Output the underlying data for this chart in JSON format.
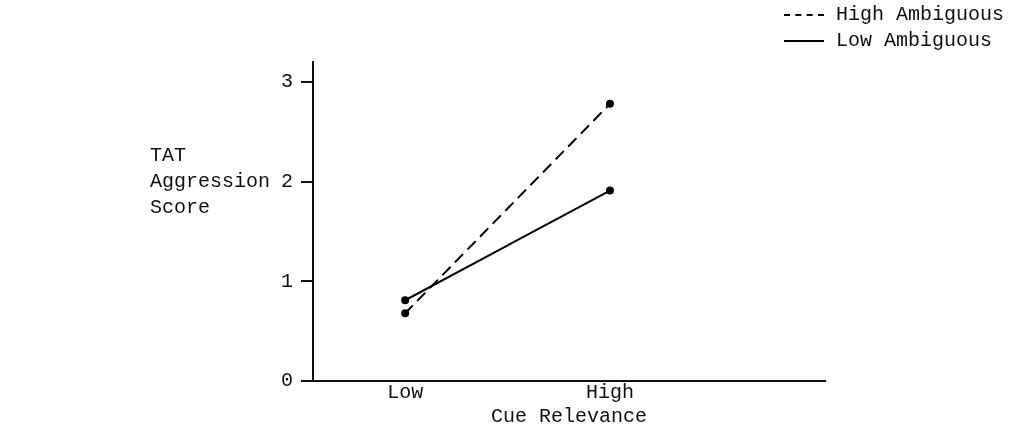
{
  "chart_data": {
    "type": "line",
    "xlabel": "Cue Relevance",
    "ylabel": "TAT Aggression Score",
    "categories": [
      "Low",
      "High"
    ],
    "series": [
      {
        "name": "High Ambiguous",
        "color": "#000000",
        "values": [
          0.68,
          2.78
        ],
        "line_style": "dashed"
      },
      {
        "name": "Low Ambiguous",
        "color": "#000000",
        "values": [
          0.81,
          1.91
        ],
        "line_style": "solid"
      }
    ],
    "ylim": [
      0,
      3.2
    ],
    "yticks": [
      0,
      1,
      2,
      3
    ],
    "grid": false,
    "legend": "top right",
    "marker": "circle"
  }
}
